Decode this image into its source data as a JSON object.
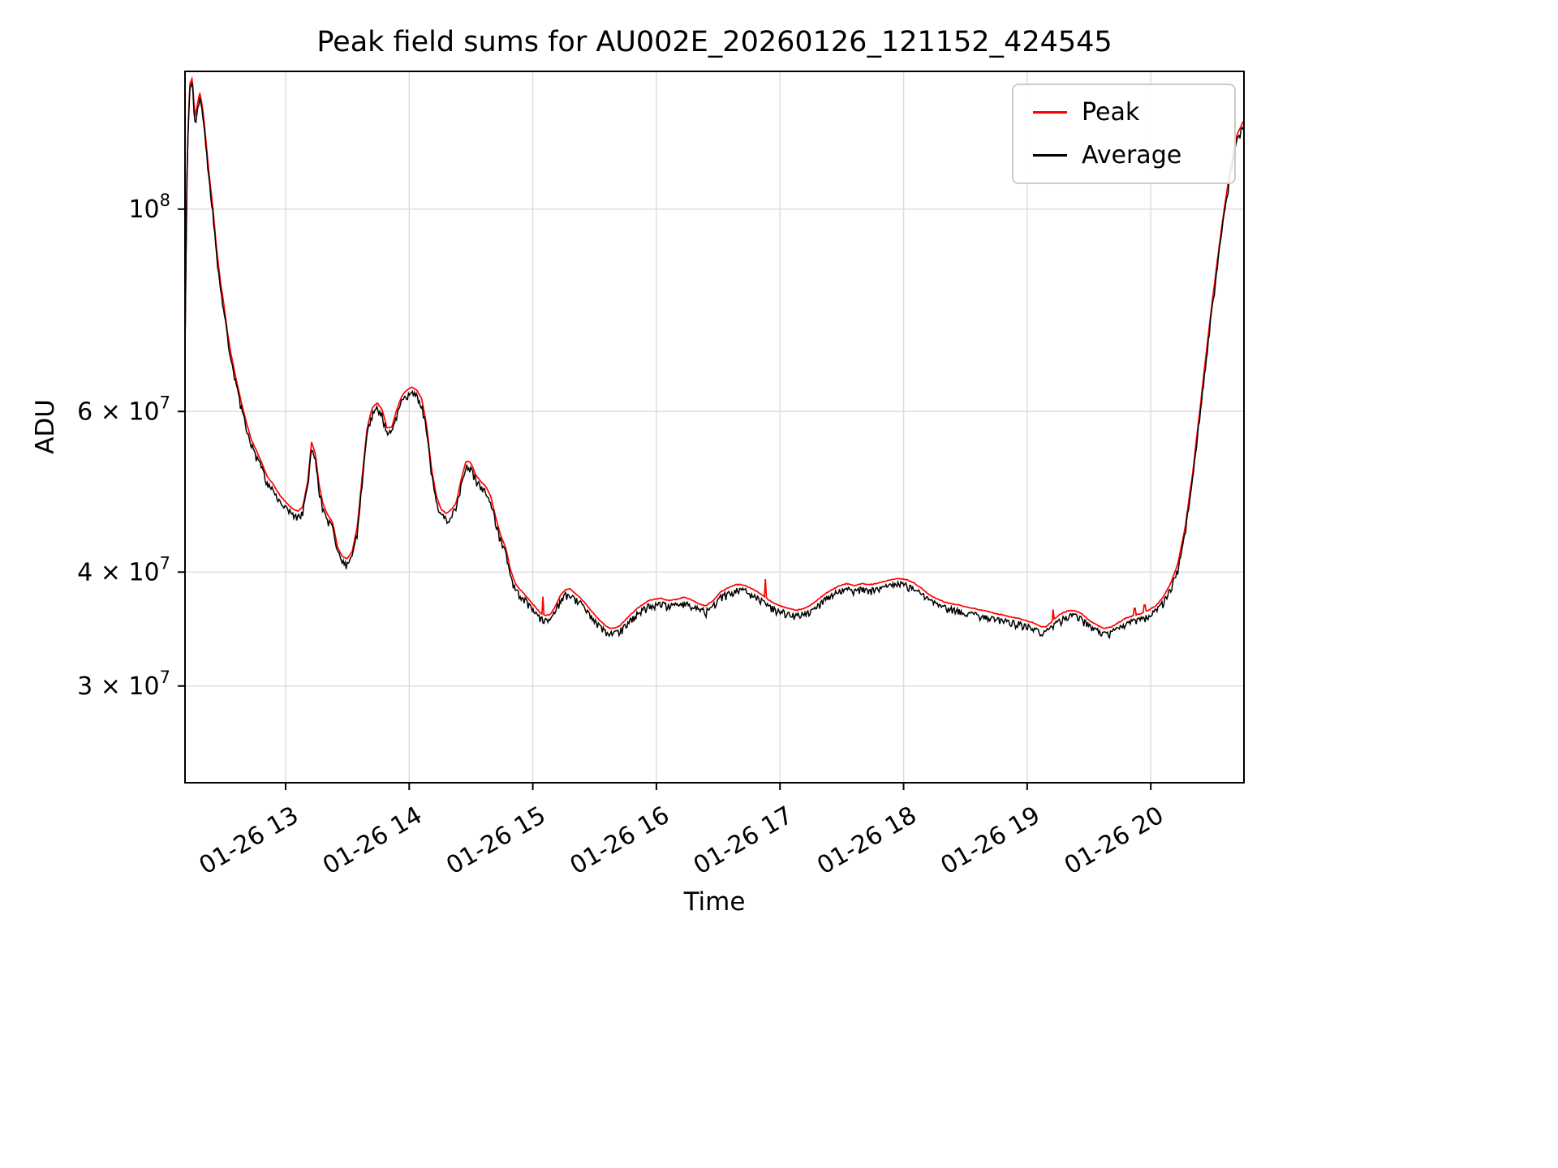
{
  "legend": {
    "items": [
      {
        "label": "Peak",
        "color": "#ff0000"
      },
      {
        "label": "Average",
        "color": "#000000"
      }
    ]
  },
  "chart_data": {
    "type": "line",
    "title": "Peak field sums for AU002E_20260126_121152_424545",
    "xlabel": "Time",
    "ylabel": "ADU",
    "yscale": "log",
    "grid": true,
    "legend_position": "upper right",
    "x_unit": "hours of day on 01-26 (decimal)",
    "value_unit": "ADU",
    "xlim": [
      12.186,
      20.754
    ],
    "ylim": [
      23500000.0,
      141600000.0
    ],
    "x_ticks": [
      {
        "t": 13,
        "label": "01-26 13"
      },
      {
        "t": 14,
        "label": "01-26 14"
      },
      {
        "t": 15,
        "label": "01-26 15"
      },
      {
        "t": 16,
        "label": "01-26 16"
      },
      {
        "t": 17,
        "label": "01-26 17"
      },
      {
        "t": 18,
        "label": "01-26 18"
      },
      {
        "t": 19,
        "label": "01-26 19"
      },
      {
        "t": 20,
        "label": "01-26 20"
      }
    ],
    "y_ticks": [
      {
        "v": 30000000.0,
        "base": "3 × 10",
        "exp": "7"
      },
      {
        "v": 40000000.0,
        "base": "4 × 10",
        "exp": "7"
      },
      {
        "v": 60000000.0,
        "base": "6 × 10",
        "exp": "7"
      },
      {
        "v": 100000000.0,
        "base": "10",
        "exp": "8"
      }
    ],
    "noise": {
      "seed": 11,
      "step": 0.008,
      "avg_down": 0.018,
      "jitter": 0.004,
      "peak_up": 0.002
    },
    "series": [
      {
        "name": "Peak",
        "color": "#ff0000",
        "unit": 10000000.0,
        "based_on": "Average",
        "scale": 1.008,
        "spikes": [
          {
            "t": 15.08,
            "v": 3.76
          },
          {
            "t": 16.88,
            "v": 3.93
          },
          {
            "t": 19.21,
            "v": 3.64
          },
          {
            "t": 19.87,
            "v": 3.65
          },
          {
            "t": 19.95,
            "v": 3.68
          }
        ]
      },
      {
        "name": "Average",
        "color": "#000000",
        "unit": 10000000.0,
        "t": [
          12.186,
          12.205,
          12.225,
          12.245,
          12.265,
          12.285,
          12.305,
          12.325,
          12.345,
          12.365,
          12.385,
          12.41,
          12.44,
          12.47,
          12.5,
          12.53,
          12.56,
          12.6,
          12.64,
          12.68,
          12.72,
          12.76,
          12.8,
          12.85,
          12.9,
          12.95,
          13.0,
          13.05,
          13.1,
          13.14,
          13.18,
          13.21,
          13.24,
          13.27,
          13.3,
          13.34,
          13.38,
          13.42,
          13.46,
          13.5,
          13.54,
          13.58,
          13.62,
          13.66,
          13.7,
          13.74,
          13.78,
          13.82,
          13.86,
          13.9,
          13.94,
          13.98,
          14.02,
          14.06,
          14.1,
          14.14,
          14.18,
          14.22,
          14.26,
          14.3,
          14.34,
          14.38,
          14.42,
          14.46,
          14.5,
          14.54,
          14.58,
          14.62,
          14.66,
          14.7,
          14.74,
          14.78,
          14.82,
          14.86,
          14.9,
          14.94,
          14.98,
          15.02,
          15.06,
          15.1,
          15.14,
          15.18,
          15.22,
          15.26,
          15.3,
          15.34,
          15.38,
          15.42,
          15.46,
          15.5,
          15.54,
          15.58,
          15.62,
          15.66,
          15.7,
          15.74,
          15.78,
          15.82,
          15.86,
          15.9,
          15.94,
          15.98,
          16.04,
          16.1,
          16.16,
          16.22,
          16.28,
          16.34,
          16.4,
          16.46,
          16.52,
          16.58,
          16.64,
          16.7,
          16.76,
          16.82,
          16.88,
          16.94,
          17.0,
          17.06,
          17.12,
          17.18,
          17.24,
          17.3,
          17.36,
          17.42,
          17.48,
          17.54,
          17.6,
          17.66,
          17.72,
          17.78,
          17.84,
          17.9,
          17.96,
          18.02,
          18.08,
          18.14,
          18.2,
          18.26,
          18.32,
          18.38,
          18.44,
          18.5,
          18.56,
          18.62,
          18.68,
          18.74,
          18.8,
          18.86,
          18.92,
          18.98,
          19.04,
          19.1,
          19.15,
          19.2,
          19.26,
          19.32,
          19.38,
          19.44,
          19.5,
          19.56,
          19.62,
          19.68,
          19.74,
          19.8,
          19.86,
          19.92,
          19.98,
          20.04,
          20.1,
          20.16,
          20.22,
          20.28,
          20.34,
          20.4,
          20.46,
          20.52,
          20.58,
          20.64,
          20.7,
          20.754
        ],
        "v": [
          7.0,
          11.5,
          13.6,
          13.8,
          12.5,
          12.9,
          13.3,
          12.9,
          12.2,
          11.4,
          10.7,
          10.0,
          9.0,
          8.3,
          7.8,
          7.25,
          6.85,
          6.45,
          6.1,
          5.8,
          5.55,
          5.4,
          5.25,
          5.05,
          4.95,
          4.82,
          4.73,
          4.66,
          4.62,
          4.68,
          5.0,
          5.5,
          5.35,
          4.95,
          4.72,
          4.58,
          4.5,
          4.22,
          4.12,
          4.1,
          4.18,
          4.45,
          5.05,
          5.7,
          6.0,
          6.08,
          5.98,
          5.7,
          5.72,
          5.98,
          6.18,
          6.28,
          6.32,
          6.28,
          6.15,
          5.75,
          5.15,
          4.8,
          4.64,
          4.6,
          4.64,
          4.72,
          5.0,
          5.25,
          5.22,
          5.06,
          4.98,
          4.92,
          4.8,
          4.55,
          4.35,
          4.22,
          3.98,
          3.85,
          3.79,
          3.74,
          3.68,
          3.63,
          3.58,
          3.55,
          3.56,
          3.63,
          3.73,
          3.79,
          3.8,
          3.76,
          3.72,
          3.67,
          3.61,
          3.56,
          3.51,
          3.47,
          3.44,
          3.44,
          3.46,
          3.5,
          3.55,
          3.59,
          3.63,
          3.66,
          3.69,
          3.7,
          3.71,
          3.69,
          3.7,
          3.72,
          3.7,
          3.66,
          3.64,
          3.69,
          3.77,
          3.81,
          3.84,
          3.84,
          3.81,
          3.77,
          3.72,
          3.67,
          3.64,
          3.62,
          3.6,
          3.61,
          3.64,
          3.69,
          3.75,
          3.79,
          3.83,
          3.85,
          3.83,
          3.85,
          3.84,
          3.85,
          3.87,
          3.89,
          3.9,
          3.89,
          3.86,
          3.81,
          3.75,
          3.71,
          3.68,
          3.66,
          3.65,
          3.63,
          3.62,
          3.6,
          3.59,
          3.57,
          3.56,
          3.54,
          3.53,
          3.51,
          3.49,
          3.46,
          3.45,
          3.5,
          3.56,
          3.59,
          3.6,
          3.57,
          3.51,
          3.47,
          3.44,
          3.45,
          3.49,
          3.53,
          3.55,
          3.57,
          3.6,
          3.64,
          3.72,
          3.85,
          4.05,
          4.45,
          5.1,
          6.0,
          7.1,
          8.3,
          9.6,
          10.9,
          12.0,
          12.4
        ]
      }
    ]
  }
}
